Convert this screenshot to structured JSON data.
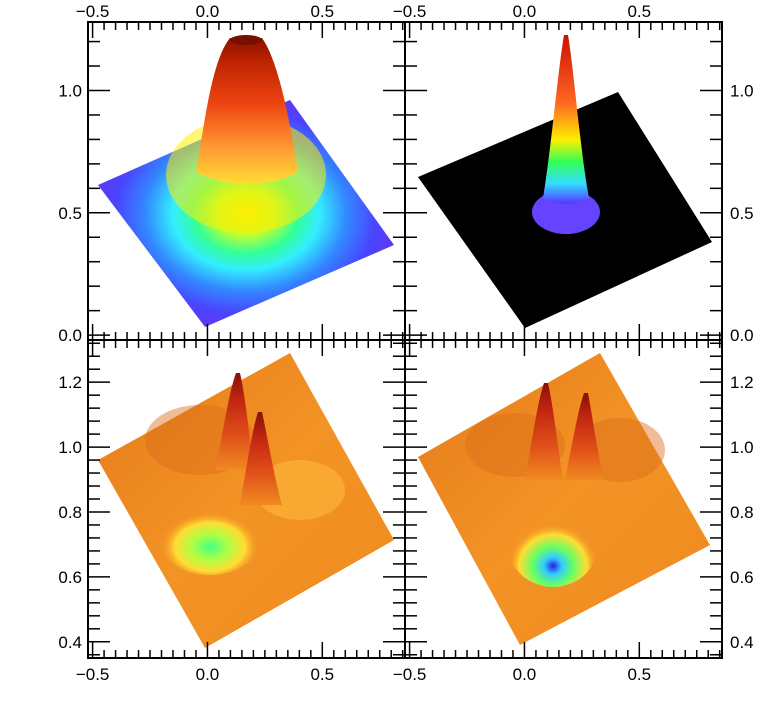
{
  "chart_data": [
    {
      "type": "surface",
      "panel": "top-left",
      "surface_shape": "single broad peak",
      "colormap": "rainbow (blue to red)",
      "background": "surface",
      "x_axis": {
        "position": "top",
        "ticks": [
          -0.5,
          0.0,
          0.5
        ],
        "tick_labels": [
          "−0.5",
          "0.0",
          "0.5"
        ],
        "range": [
          -0.52,
          0.86
        ]
      },
      "y_axis": {
        "position": "left",
        "ticks": [
          0.0,
          0.5,
          1.0
        ],
        "tick_labels": [
          "0.0",
          "0.5",
          "1.0"
        ],
        "range": [
          -0.02,
          1.28
        ]
      },
      "peak": {
        "x": 0.18,
        "y": 1.22
      }
    },
    {
      "type": "surface",
      "panel": "top-right",
      "surface_shape": "single narrow spike",
      "colormap": "rainbow (blue to red)",
      "background": "black",
      "x_axis": {
        "position": "top",
        "ticks": [
          -0.5,
          0.0,
          0.5
        ],
        "tick_labels": [
          "−0.5",
          "0.0",
          "0.5"
        ],
        "range": [
          -0.52,
          0.86
        ]
      },
      "y_axis": {
        "position": "right",
        "ticks": [
          0.0,
          0.5,
          1.0
        ],
        "tick_labels": [
          "0.0",
          "0.5",
          "1.0"
        ],
        "range": [
          -0.02,
          1.28
        ]
      },
      "peak": {
        "x": 0.18,
        "y": 1.22
      }
    },
    {
      "type": "surface",
      "panel": "bottom-left",
      "surface_shape": "two peaks with a dip",
      "colormap": "rainbow (blue to red)",
      "background": "orange",
      "x_axis": {
        "position": "bottom",
        "ticks": [
          -0.5,
          0.0,
          0.5
        ],
        "tick_labels": [
          "−0.5",
          "0.0",
          "0.5"
        ],
        "range": [
          -0.52,
          0.86
        ]
      },
      "y_axis": {
        "position": "left",
        "ticks": [
          0.4,
          0.6,
          0.8,
          1.0,
          1.2
        ],
        "tick_labels": [
          "0.4",
          "0.6",
          "0.8",
          "1.0",
          "1.2"
        ],
        "range": [
          0.35,
          1.33
        ]
      },
      "peaks": [
        {
          "x": 0.13,
          "y": 1.24
        },
        {
          "x": 0.23,
          "y": 1.1
        }
      ]
    },
    {
      "type": "surface",
      "panel": "bottom-right",
      "surface_shape": "two peaks with a dip",
      "colormap": "rainbow (blue to red)",
      "background": "orange",
      "x_axis": {
        "position": "bottom",
        "ticks": [
          -0.5,
          0.0,
          0.5
        ],
        "tick_labels": [
          "−0.5",
          "0.0",
          "0.5"
        ],
        "range": [
          -0.52,
          0.86
        ]
      },
      "y_axis": {
        "position": "right",
        "ticks": [
          0.4,
          0.6,
          0.8,
          1.0,
          1.2
        ],
        "tick_labels": [
          "0.4",
          "0.6",
          "0.8",
          "1.0",
          "1.2"
        ],
        "range": [
          0.35,
          1.33
        ]
      },
      "peaks": [
        {
          "x": 0.1,
          "y": 1.2
        },
        {
          "x": 0.28,
          "y": 1.16
        }
      ]
    }
  ],
  "colors": {
    "frame": "#000000",
    "low": "#5533ff",
    "mid_cyan": "#33eeff",
    "mid_green": "#33dd33",
    "mid_yellow": "#ffee00",
    "high": "#dd2200",
    "peak_dark": "#991100",
    "orange_base": "#f08a20",
    "black_base": "#000000"
  }
}
